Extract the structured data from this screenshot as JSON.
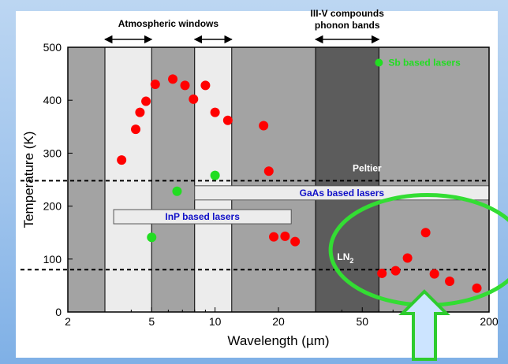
{
  "chart_data": {
    "type": "scatter",
    "xscale": "log",
    "xlim": [
      2,
      200
    ],
    "ylim": [
      0,
      500
    ],
    "xlabel": "Wavelength (µm)",
    "ylabel": "Temperature (K)",
    "xticks": [
      {
        "value": 2,
        "label": "2"
      },
      {
        "value": 5,
        "label": "5"
      },
      {
        "value": 10,
        "label": "10"
      },
      {
        "value": 20,
        "label": "20"
      },
      {
        "value": 50,
        "label": "50"
      },
      {
        "value": 200,
        "label": "200"
      }
    ],
    "yticks": [
      0,
      100,
      200,
      300,
      400,
      500
    ],
    "grid": false,
    "bands": [
      {
        "from": 2,
        "to": 3,
        "shade": "gray"
      },
      {
        "from": 3,
        "to": 5,
        "shade": "light"
      },
      {
        "from": 5,
        "to": 8,
        "shade": "gray"
      },
      {
        "from": 8,
        "to": 12,
        "shade": "light"
      },
      {
        "from": 12,
        "to": 30,
        "shade": "gray"
      },
      {
        "from": 30,
        "to": 60,
        "shade": "dark"
      },
      {
        "from": 60,
        "to": 200,
        "shade": "gray"
      }
    ],
    "reference_lines": [
      {
        "y": 248,
        "label": "Peltier",
        "label_x": 45
      },
      {
        "y": 80,
        "label": "LN",
        "label_sub": "2",
        "label_x": 38
      }
    ],
    "annotations_top": [
      {
        "text": "Atmospheric windows",
        "from": 3,
        "to": 12
      },
      {
        "line1": "III-V compounds",
        "line2": "phonon bands",
        "from": 30,
        "to": 60
      }
    ],
    "bars": [
      {
        "label": "InP based lasers",
        "from": 3.3,
        "to": 23,
        "y": 180
      },
      {
        "label": "GaAs based lasers",
        "from": 8,
        "to": 200,
        "y": 225
      }
    ],
    "series": [
      {
        "name": "",
        "color": "#ff0000",
        "points": [
          [
            3.6,
            287
          ],
          [
            4.2,
            345
          ],
          [
            4.4,
            377
          ],
          [
            4.7,
            398
          ],
          [
            5.2,
            430
          ],
          [
            6.3,
            440
          ],
          [
            7.2,
            428
          ],
          [
            7.9,
            402
          ],
          [
            9.0,
            428
          ],
          [
            10.0,
            377
          ],
          [
            11.5,
            362
          ],
          [
            17.0,
            352
          ],
          [
            18.0,
            266
          ],
          [
            19.0,
            142
          ],
          [
            21.5,
            143
          ],
          [
            24.0,
            133
          ],
          [
            62,
            73
          ],
          [
            72,
            78
          ],
          [
            82,
            102
          ],
          [
            100,
            150
          ],
          [
            110,
            72
          ],
          [
            130,
            58
          ],
          [
            175,
            45
          ]
        ]
      },
      {
        "name": "Sb based lasers",
        "color": "#22dd22",
        "legend_point": [
          60,
          471
        ],
        "points": [
          [
            5.0,
            141
          ],
          [
            6.6,
            228
          ],
          [
            10.0,
            258
          ]
        ]
      }
    ],
    "highlight_ellipse": {
      "color": "#33dd33",
      "cx": 102,
      "cy": 117,
      "rx_decades": 0.46,
      "ry": 104
    },
    "arrow": {
      "color": "#2ecc2e",
      "fill": "#cce4ff",
      "direction": "up"
    }
  }
}
